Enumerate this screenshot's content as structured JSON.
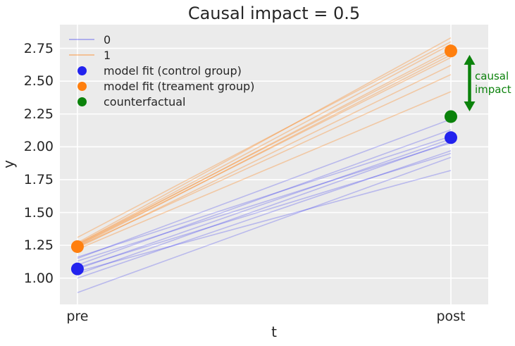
{
  "chart_data": {
    "type": "line",
    "title": "Causal impact = 0.5",
    "xlabel": "t",
    "ylabel": "y",
    "x_categories": [
      "pre",
      "post"
    ],
    "x_values": [
      0,
      1
    ],
    "xlim": [
      -0.047,
      1.1
    ],
    "ylim": [
      0.8,
      2.93
    ],
    "yticks": [
      1.0,
      1.25,
      1.5,
      1.75,
      2.0,
      2.25,
      2.5,
      2.75
    ],
    "ytick_labels": [
      "1.00",
      "1.25",
      "1.50",
      "1.75",
      "2.00",
      "2.25",
      "2.50",
      "2.75"
    ],
    "grid": true,
    "grid_color": "#ffffff",
    "plot_background": "#ebebeb",
    "units": [
      {
        "group": "0",
        "color": "#2222ee",
        "alpha": 0.25,
        "lines": [
          [
            0.89,
            1.92
          ],
          [
            1.0,
            1.97
          ],
          [
            1.03,
            2.04
          ],
          [
            1.05,
            1.82
          ],
          [
            1.07,
            2.06
          ],
          [
            1.08,
            1.95
          ],
          [
            1.1,
            2.13
          ],
          [
            1.13,
            2.03
          ],
          [
            1.15,
            2.21
          ],
          [
            1.16,
            2.08
          ]
        ]
      },
      {
        "group": "1",
        "color": "#ff7f0e",
        "alpha": 0.32,
        "lines": [
          [
            1.22,
            2.42
          ],
          [
            1.23,
            2.62
          ],
          [
            1.24,
            2.55
          ],
          [
            1.24,
            2.7
          ],
          [
            1.25,
            2.74
          ],
          [
            1.25,
            2.68
          ],
          [
            1.26,
            2.72
          ],
          [
            1.26,
            2.78
          ],
          [
            1.27,
            2.83
          ],
          [
            1.31,
            2.8
          ]
        ]
      }
    ],
    "markers": [
      {
        "name": "model fit (control group)",
        "slug": "control-fit",
        "color": "#2222ee",
        "points": [
          {
            "x": 0,
            "y": 1.07
          },
          {
            "x": 1,
            "y": 2.07
          }
        ]
      },
      {
        "name": "model fit (treament group)",
        "slug": "treatment-fit",
        "color": "#ff7f0e",
        "points": [
          {
            "x": 0,
            "y": 1.24
          },
          {
            "x": 1,
            "y": 2.73
          }
        ]
      },
      {
        "name": "counterfactual",
        "slug": "counterfactual",
        "color": "#0b820b",
        "points": [
          {
            "x": 1,
            "y": 2.23
          }
        ]
      }
    ],
    "annotation": {
      "label_lines": [
        "causal",
        "impact"
      ],
      "color": "#0b820b",
      "arrow_x": 1.05,
      "arrow_y_top": 2.7,
      "arrow_y_bottom": 2.27
    }
  },
  "legend": {
    "entries": [
      {
        "label": "0",
        "swatch": "line",
        "color": "rgba(34,34,238,0.30)"
      },
      {
        "label": "1",
        "swatch": "line",
        "color": "rgba(255,127,14,0.38)"
      },
      {
        "label": "model fit (control group)",
        "swatch": "dot",
        "color": "#2222ee"
      },
      {
        "label": "model fit (treament group)",
        "swatch": "dot",
        "color": "#ff7f0e"
      },
      {
        "label": "counterfactual",
        "swatch": "dot",
        "color": "#0b820b"
      }
    ]
  }
}
